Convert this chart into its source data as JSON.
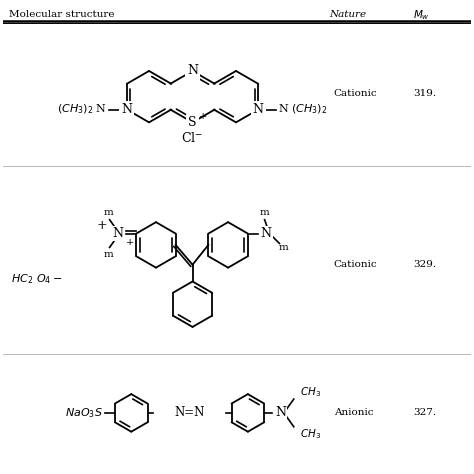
{
  "bg": "#ffffff",
  "header_col1": "Molecular structure",
  "header_col2": "Nature",
  "header_col3": "M_w",
  "row1_nature": "Cationic",
  "row1_mw": "319.",
  "row2_nature": "Cationic",
  "row2_mw": "329.",
  "row3_nature": "Anionic",
  "row3_mw": "327.",
  "fig_w": 4.74,
  "fig_h": 4.74,
  "dpi": 100
}
